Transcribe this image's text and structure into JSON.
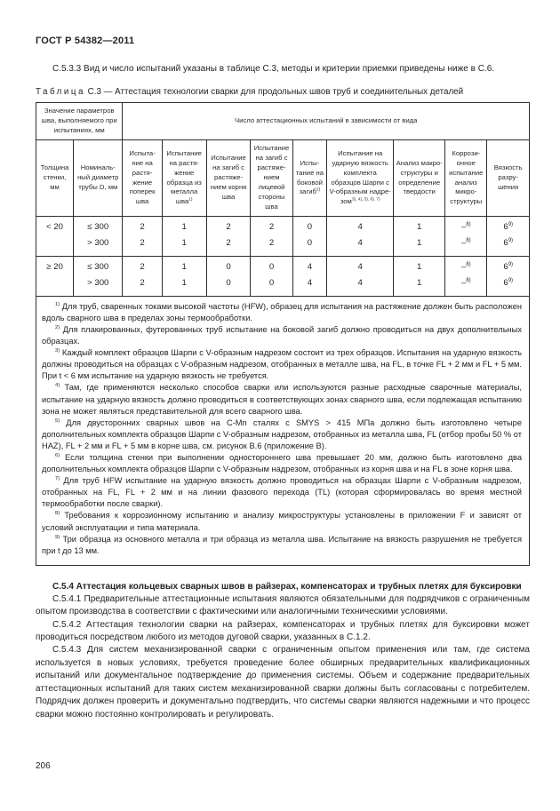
{
  "page": {
    "header": "ГОСТ Р 54382—2011",
    "number": "206"
  },
  "intro": "С.5.3.3 Вид и число испытаний указаны в таблице С.3, методы и критерии приемки приведены ниже в С.6.",
  "caption": {
    "label": "Таблица",
    "number": "С.3",
    "title": "— Аттестация технологии сварки для продольных швов труб и соединительных деталей"
  },
  "table": {
    "header_params": "Значение параметров шва, выполняемого при испытаниях, мм",
    "header_tests": "Число аттестационных испытаний в зависимости от вида",
    "columns": [
      {
        "text": "Толщи­на стенки, мм"
      },
      {
        "text": "Номиналь­ный диа­метр трубы D, мм"
      },
      {
        "text": "Испыта­ние на растя­жение поперек шва"
      },
      {
        "text": "Испытание на растя­жение образца из металла шва",
        "sup": "1)"
      },
      {
        "text": "Испыта­ние на загиб с растяже­нием корня шва"
      },
      {
        "text": "Испыта­ние на загиб с растяже­нием лицевой стороны шва"
      },
      {
        "text": "Испы­тание на боко­вой загиб",
        "sup": "2)"
      },
      {
        "text": "Испытание на ударную вязкость комплекта образцов Шарпи с V-образным надре­зом",
        "sup": "3), 4), 5), 6), 7)"
      },
      {
        "text": "Анализ макро­структуры и опреде­ление твердости"
      },
      {
        "text": "Коррози­онное испыта­ние анализ микро­структу­ры"
      },
      {
        "text": "Вяз­кость разру­шения"
      }
    ],
    "groups": [
      {
        "thickness": "< 20",
        "rows": [
          {
            "diameter": "≤ 300",
            "values": [
              "2",
              "1",
              "2",
              "2",
              "0",
              "4",
              "1",
              {
                "v": "–",
                "sup": "8)"
              },
              {
                "v": "6",
                "sup": "9)"
              }
            ]
          },
          {
            "diameter": "> 300",
            "values": [
              "2",
              "1",
              "2",
              "2",
              "0",
              "4",
              "1",
              {
                "v": "–",
                "sup": "8)"
              },
              {
                "v": "6",
                "sup": "9)"
              }
            ]
          }
        ]
      },
      {
        "thickness": "≥ 20",
        "rows": [
          {
            "diameter": "≤ 300",
            "values": [
              "2",
              "1",
              "0",
              "0",
              "4",
              "4",
              "1",
              {
                "v": "–",
                "sup": "8)"
              },
              {
                "v": "6",
                "sup": "9)"
              }
            ]
          },
          {
            "diameter": "> 300",
            "values": [
              "2",
              "1",
              "0",
              "0",
              "4",
              "4",
              "1",
              {
                "v": "–",
                "sup": "8)"
              },
              {
                "v": "6",
                "sup": "9)"
              }
            ]
          }
        ]
      }
    ]
  },
  "footnotes": [
    {
      "sup": "1)",
      "text": "Для труб, сваренных токами высокой частоты (HFW), образец для испытания на растяжение должен быть расположен вдоль сварного шва в пределах зоны термообработки."
    },
    {
      "sup": "2)",
      "text": "Для плакированных, футерованных труб испытание на боковой загиб должно проводиться на двух дополнительных образцах."
    },
    {
      "sup": "3)",
      "text": "Каждый комплект образцов Шарпи с V-образным надрезом состоит из трех образцов. Испытания на ударную вязкость должны проводиться на образцах с V-образным надрезом, отобранных в металле шва, на FL, в точке FL + 2 мм и FL + 5 мм. При t < 6 мм испытание на ударную вязкость не требуется."
    },
    {
      "sup": "4)",
      "text": "Там, где применяются несколько способов сварки или используются разные расходные сварочные материалы, испытание на ударную вязкость должно проводиться в соответствующих зонах сварного шва, если подлежащая испытанию зона не может являться представительной для всего сварного шва."
    },
    {
      "sup": "5)",
      "text": "Для двусторонних сварных швов на С-Mn сталях с SMYS > 415 МПа должно быть изготовлено четыре дополнительных комплекта образцов Шарпи с V-образным надрезом, отобранных из металла шва, FL (отбор пробы 50 % от HAZ), FL + 2 мм и FL + 5 мм в корне шва, см. рисунок В.6 (приложение В)."
    },
    {
      "sup": "6)",
      "text": "Если толщина стенки при выполнении одностороннего шва превышает 20 мм, должно быть изготовлено два дополнительных комплекта образцов Шарпи с V-образным надрезом, отобранных из корня шва и на FL в зоне корня шва."
    },
    {
      "sup": "7)",
      "text": "Для труб HFW испытание на ударную вязкость должно проводиться на образцах Шарпи с V-образным надрезом, отобранных на FL, FL + 2 мм и на линии фазового перехода (TL) (которая сформировалась во время местной термообработки после сварки)."
    },
    {
      "sup": "8)",
      "text": "Требования к коррозионному испытанию и анализу микроструктуры установлены в приложении F и зависят от условий эксплуатации и типа материала."
    },
    {
      "sup": "9)",
      "text": "Три образца из основного металла и три образца из металла шва. Испытание на вязкость разрушения не требуется при t до 13 мм."
    }
  ],
  "section": {
    "heading": "С.5.4 Аттестация кольцевых сварных швов в райзерах, компенсаторах и трубных плетях для буксировки",
    "paragraphs": [
      "С.5.4.1 Предварительные аттестационные испытания являются обязательными для подрядчиков с ограниченным опытом производства в соответствии с фактическими или аналогичными техническими условиями.",
      "С.5.4.2 Аттестация технологии сварки на райзерах, компенсаторах и трубных плетях для буксировки может проводиться посредством любого из методов дуговой сварки, указанных в С.1.2.",
      "С.5.4.3 Для систем механизированной сварки с ограниченным опытом применения или там, где система используется в новых условиях, требуется проведение более обширных предварительных квалификационных испытаний или документальное подтверждение до применения системы. Объем и содержание предварительных аттестационных испытаний для таких систем механизированной сварки должны быть согласованы с потребителем. Подрядчик должен проверить и документально подтвердить, что системы сварки являются надежными и что процесс сварки можно постоянно контролировать и регулировать."
    ]
  }
}
